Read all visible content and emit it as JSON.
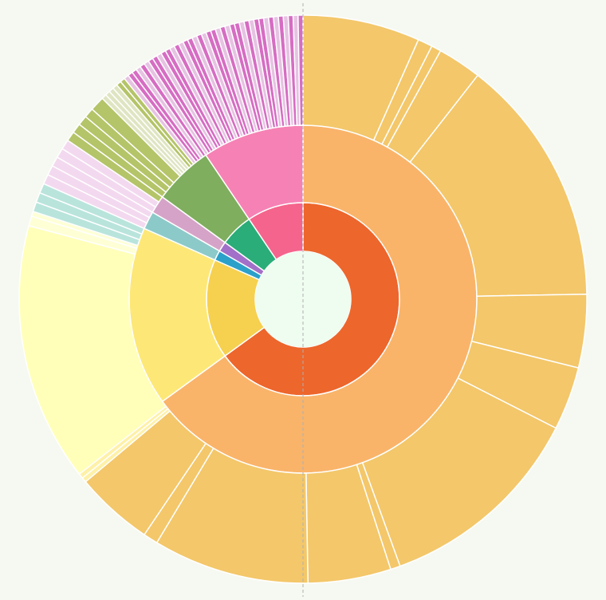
{
  "chart_data": {
    "type": "sunburst",
    "title": "",
    "start_angle_deg": 0,
    "direction": "clockwise",
    "center_color": "#effcf0",
    "rings": [
      {
        "level": 1,
        "segments": [
          {
            "start": 0,
            "end": 234,
            "color": "#ed662c"
          },
          {
            "start": 234,
            "end": 294,
            "color": "#f6d04f"
          },
          {
            "start": 294,
            "end": 300,
            "color": "#2ba0c9"
          },
          {
            "start": 300,
            "end": 306,
            "color": "#a270c8"
          },
          {
            "start": 306,
            "end": 326,
            "color": "#2aad78"
          },
          {
            "start": 326,
            "end": 360,
            "color": "#f5648c"
          }
        ]
      },
      {
        "level": 2,
        "segments": [
          {
            "start": 0,
            "end": 234,
            "color": "#f9b46a"
          },
          {
            "start": 234,
            "end": 294,
            "color": "#fde877"
          },
          {
            "start": 294,
            "end": 300,
            "color": "#8ccac9"
          },
          {
            "start": 300,
            "end": 306,
            "color": "#d6a3c8"
          },
          {
            "start": 306,
            "end": 326,
            "color": "#7eae5e"
          },
          {
            "start": 326,
            "end": 360,
            "color": "#f681b4"
          }
        ]
      },
      {
        "level": 3,
        "segments": [
          {
            "start": 0,
            "end": 24,
            "color": "#f3c76a"
          },
          {
            "start": 24,
            "end": 27,
            "color": "#f3c76a"
          },
          {
            "start": 27,
            "end": 29,
            "color": "#f3c76a"
          },
          {
            "start": 29,
            "end": 38,
            "color": "#f3c76a"
          },
          {
            "start": 38,
            "end": 89,
            "color": "#f3c76a"
          },
          {
            "start": 89,
            "end": 104,
            "color": "#f3c76a"
          },
          {
            "start": 104,
            "end": 117,
            "color": "#f3c76a"
          },
          {
            "start": 117,
            "end": 160,
            "color": "#f3c76a"
          },
          {
            "start": 160,
            "end": 162,
            "color": "#f3c76a"
          },
          {
            "start": 162,
            "end": 179,
            "color": "#f3c76a"
          },
          {
            "start": 179,
            "end": 211,
            "color": "#f3c76a"
          },
          {
            "start": 211,
            "end": 214,
            "color": "#f3c76a"
          },
          {
            "start": 214,
            "end": 230,
            "color": "#f3c76a"
          },
          {
            "start": 230,
            "end": 231,
            "color": "#fef1a8"
          },
          {
            "start": 231,
            "end": 232,
            "color": "#fef1a8"
          },
          {
            "start": 232,
            "end": 285,
            "color": "#ffffb9"
          },
          {
            "start": 285,
            "end": 287,
            "color": "#ffffd6"
          },
          {
            "start": 287,
            "end": 288,
            "color": "#ffffd6"
          },
          {
            "start": 288,
            "end": 290,
            "color": "#b9e4dc"
          },
          {
            "start": 290,
            "end": 292,
            "color": "#b9e4dc"
          },
          {
            "start": 292,
            "end": 294,
            "color": "#b9e4dc"
          },
          {
            "start": 294,
            "end": 296,
            "color": "#f3d9ef"
          },
          {
            "start": 296,
            "end": 298,
            "color": "#f3d9ef"
          },
          {
            "start": 298,
            "end": 300,
            "color": "#f3d9ef"
          },
          {
            "start": 300,
            "end": 302,
            "color": "#f3d9ef"
          },
          {
            "start": 302,
            "end": 304,
            "color": "#f3d9ef"
          },
          {
            "start": 304,
            "end": 306,
            "color": "#b4c468"
          },
          {
            "start": 306,
            "end": 308,
            "color": "#b4c468"
          },
          {
            "start": 308,
            "end": 310,
            "color": "#b4c468"
          },
          {
            "start": 310,
            "end": 312,
            "color": "#b4c468"
          },
          {
            "start": 312,
            "end": 315,
            "color": "#b4c468"
          },
          {
            "start": 315,
            "end": 316,
            "color": "#dfe5c2"
          },
          {
            "start": 316,
            "end": 317,
            "color": "#dfe5c2"
          },
          {
            "start": 317,
            "end": 318,
            "color": "#dfe5c2"
          },
          {
            "start": 318,
            "end": 319,
            "color": "#dfe5c2"
          },
          {
            "start": 319,
            "end": 320,
            "color": "#b4c468"
          },
          {
            "start": 320,
            "end": 321,
            "color": "#b4c468"
          },
          {
            "start": 321,
            "end": 322,
            "color": "#e6c3e2"
          },
          {
            "start": 322,
            "end": 323,
            "color": "#d66dc3"
          },
          {
            "start": 323,
            "end": 324,
            "color": "#d66dc3"
          },
          {
            "start": 324,
            "end": 325,
            "color": "#e6c3e2"
          },
          {
            "start": 325,
            "end": 326,
            "color": "#d66dc3"
          },
          {
            "start": 326,
            "end": 327,
            "color": "#e6c3e2"
          },
          {
            "start": 327,
            "end": 328,
            "color": "#d66dc3"
          },
          {
            "start": 328,
            "end": 329,
            "color": "#d66dc3"
          },
          {
            "start": 329,
            "end": 330,
            "color": "#e6c3e2"
          },
          {
            "start": 330,
            "end": 331,
            "color": "#d66dc3"
          },
          {
            "start": 331,
            "end": 332,
            "color": "#d66dc3"
          },
          {
            "start": 332,
            "end": 333,
            "color": "#e6c3e2"
          },
          {
            "start": 333,
            "end": 334,
            "color": "#d66dc3"
          },
          {
            "start": 334,
            "end": 335,
            "color": "#e6c3e2"
          },
          {
            "start": 335,
            "end": 336,
            "color": "#d66dc3"
          },
          {
            "start": 336,
            "end": 337,
            "color": "#d66dc3"
          },
          {
            "start": 337,
            "end": 338,
            "color": "#e6c3e2"
          },
          {
            "start": 338,
            "end": 339,
            "color": "#d66dc3"
          },
          {
            "start": 339,
            "end": 340,
            "color": "#e6c3e2"
          },
          {
            "start": 340,
            "end": 341,
            "color": "#d66dc3"
          },
          {
            "start": 341,
            "end": 342,
            "color": "#d66dc3"
          },
          {
            "start": 342,
            "end": 343,
            "color": "#e6c3e2"
          },
          {
            "start": 343,
            "end": 344,
            "color": "#d66dc3"
          },
          {
            "start": 344,
            "end": 345,
            "color": "#e6c3e2"
          },
          {
            "start": 345,
            "end": 346,
            "color": "#d66dc3"
          },
          {
            "start": 346,
            "end": 347,
            "color": "#d66dc3"
          },
          {
            "start": 347,
            "end": 348,
            "color": "#e6c3e2"
          },
          {
            "start": 348,
            "end": 349,
            "color": "#d66dc3"
          },
          {
            "start": 349,
            "end": 350,
            "color": "#e6c3e2"
          },
          {
            "start": 350,
            "end": 351,
            "color": "#d66dc3"
          },
          {
            "start": 351,
            "end": 352,
            "color": "#d66dc3"
          },
          {
            "start": 352,
            "end": 353,
            "color": "#e6c3e2"
          },
          {
            "start": 353,
            "end": 354,
            "color": "#d66dc3"
          },
          {
            "start": 354,
            "end": 355,
            "color": "#e6c3e2"
          },
          {
            "start": 355,
            "end": 356,
            "color": "#d66dc3"
          },
          {
            "start": 356,
            "end": 357,
            "color": "#e6c3e2"
          },
          {
            "start": 357,
            "end": 358,
            "color": "#d66dc3"
          },
          {
            "start": 358,
            "end": 359,
            "color": "#e6c3e2"
          },
          {
            "start": 359,
            "end": 360,
            "color": "#d66dc3"
          }
        ]
      }
    ]
  }
}
